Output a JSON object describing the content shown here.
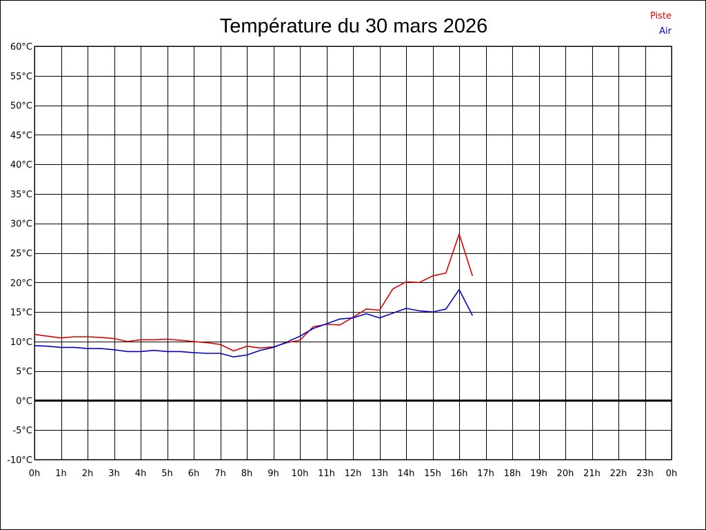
{
  "chart_data": {
    "type": "line",
    "title": "Température du 30 mars 2026",
    "xlabel": "",
    "ylabel": "",
    "x_tick_labels": [
      "0h",
      "1h",
      "2h",
      "3h",
      "4h",
      "5h",
      "6h",
      "7h",
      "8h",
      "9h",
      "10h",
      "11h",
      "12h",
      "13h",
      "14h",
      "15h",
      "16h",
      "17h",
      "18h",
      "19h",
      "20h",
      "21h",
      "22h",
      "23h",
      "0h"
    ],
    "y_tick_labels": [
      "-10°C",
      "-5°C",
      "0°C",
      "5°C",
      "10°C",
      "15°C",
      "20°C",
      "25°C",
      "30°C",
      "35°C",
      "40°C",
      "45°C",
      "50°C",
      "55°C",
      "60°C"
    ],
    "xlim": [
      0,
      24
    ],
    "ylim": [
      -10,
      60
    ],
    "x_unit": "h",
    "y_unit": "°C",
    "grid": true,
    "zero_line": true,
    "legend_position": "top-right",
    "x": [
      0,
      0.5,
      1,
      1.5,
      2,
      2.5,
      3,
      3.5,
      4,
      4.5,
      5,
      5.5,
      6,
      6.5,
      7,
      7.5,
      8,
      8.5,
      9,
      9.5,
      10,
      10.5,
      11,
      11.5,
      12,
      12.5,
      13,
      13.5,
      14,
      14.5,
      15,
      15.5,
      16,
      16.5
    ],
    "series": [
      {
        "name": "Piste",
        "color": "#dd0000",
        "values": [
          11.2,
          10.9,
          10.6,
          10.8,
          10.8,
          10.7,
          10.5,
          10.0,
          10.3,
          10.3,
          10.4,
          10.2,
          10.0,
          9.8,
          9.5,
          8.4,
          9.2,
          8.9,
          9.1,
          9.8,
          10.2,
          12.5,
          12.9,
          12.8,
          14.1,
          15.5,
          15.3,
          18.9,
          20.1,
          20.0,
          21.1,
          21.6,
          28.2,
          21.1
        ]
      },
      {
        "name": "Air",
        "color": "#0000cc",
        "values": [
          9.3,
          9.2,
          9.0,
          9.0,
          8.8,
          8.8,
          8.6,
          8.3,
          8.3,
          8.5,
          8.3,
          8.3,
          8.1,
          8.0,
          8.0,
          7.4,
          7.7,
          8.5,
          9.0,
          9.9,
          10.9,
          12.2,
          13.0,
          13.8,
          14.0,
          14.7,
          14.0,
          14.8,
          15.6,
          15.2,
          15.0,
          15.5,
          18.8,
          14.4
        ]
      }
    ]
  }
}
